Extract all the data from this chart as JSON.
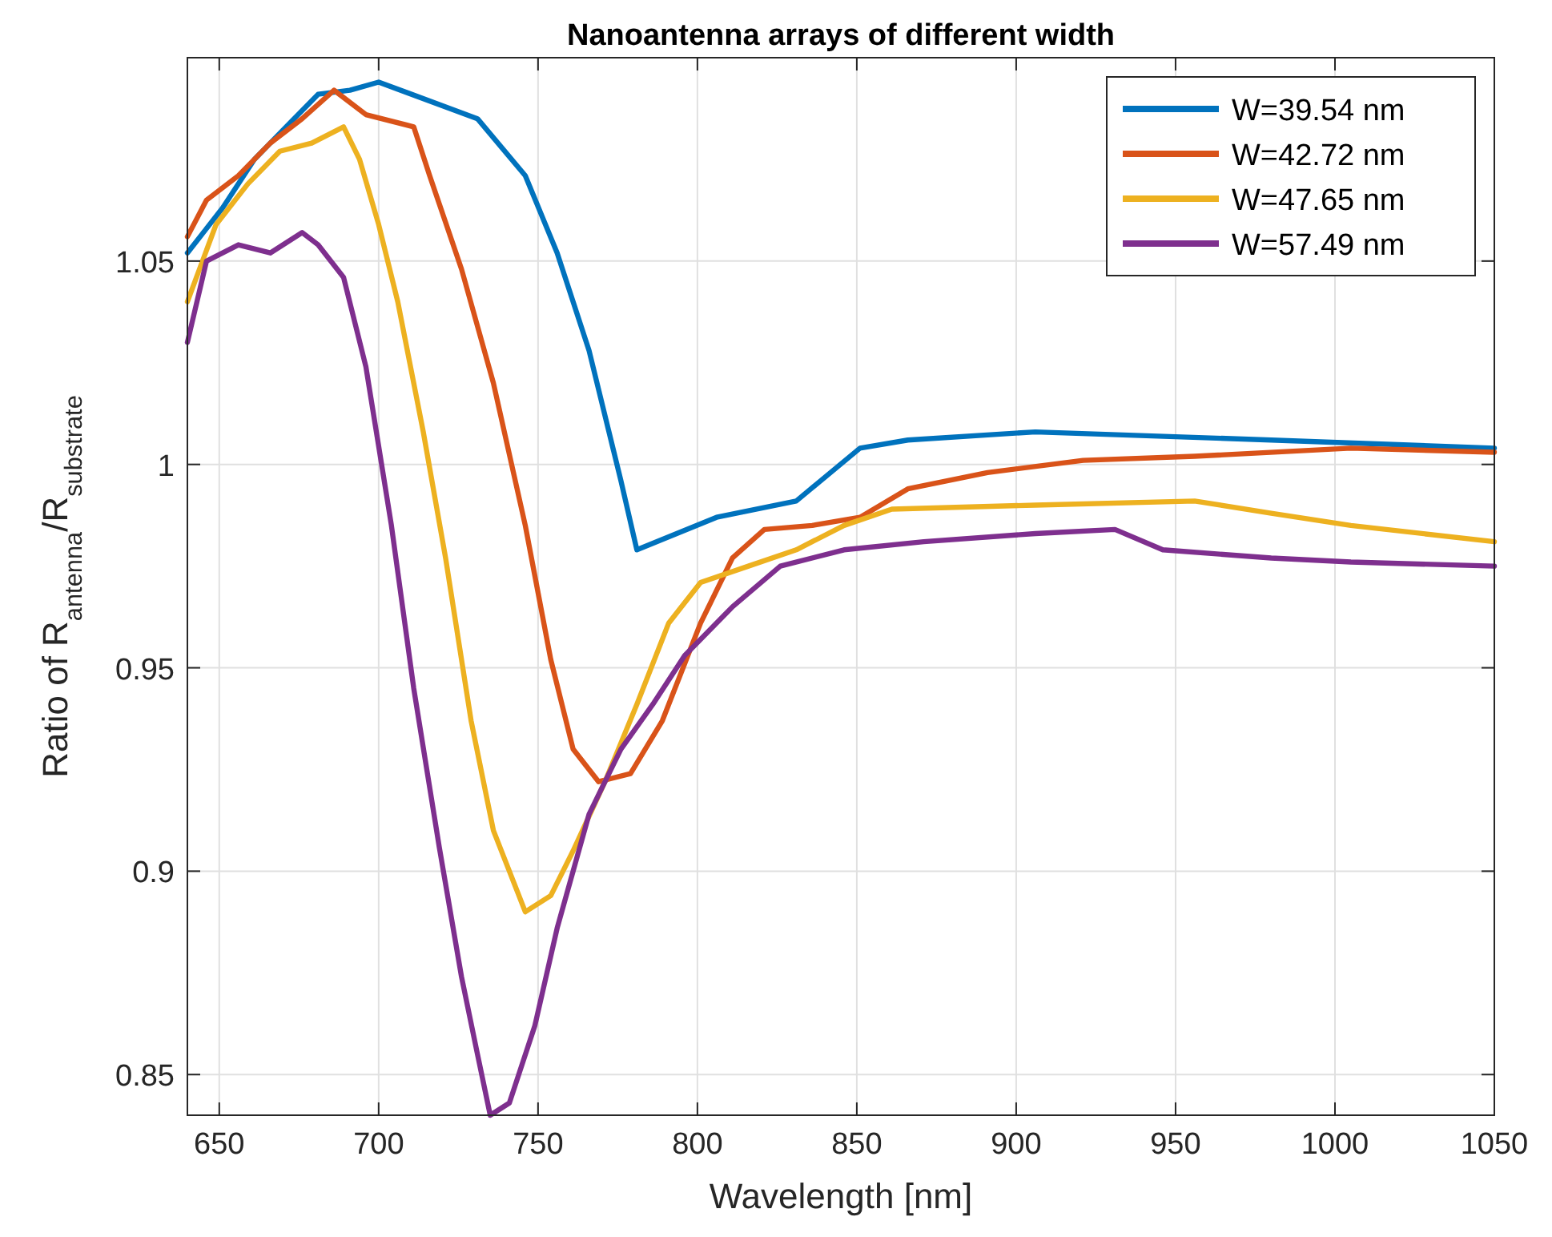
{
  "chart_data": {
    "type": "line",
    "title": "Nanoantenna arrays of different width",
    "xlabel": "Wavelength [nm]",
    "ylabel": "Ratio of R$_{antenna}$/R$_{substrate}$",
    "xlim": [
      640,
      1050
    ],
    "ylim": [
      0.84,
      1.1
    ],
    "xticks": [
      650,
      700,
      750,
      800,
      850,
      900,
      950,
      1000,
      1050
    ],
    "yticks": [
      0.85,
      0.9,
      0.95,
      1,
      1.05
    ],
    "grid": true,
    "legend": "top right",
    "line_style": "solid",
    "marker": "none",
    "series": [
      {
        "name": "W=39.54 nm",
        "color": "#0072bd",
        "x": [
          640,
          651,
          661,
          671,
          681,
          691,
          700,
          731,
          746,
          756,
          766,
          776,
          781,
          806,
          831,
          851,
          866,
          906,
          980,
          1050
        ],
        "values": [
          1.052,
          1.063,
          1.075,
          1.083,
          1.091,
          1.092,
          1.094,
          1.085,
          1.071,
          1.052,
          1.028,
          0.996,
          0.979,
          0.987,
          0.991,
          1.004,
          1.006,
          1.008,
          1.006,
          1.004
        ]
      },
      {
        "name": "W=42.72 nm",
        "color": "#d95319",
        "x": [
          640,
          646,
          656,
          666,
          676,
          686,
          696,
          711,
          716,
          726,
          736,
          746,
          754,
          761,
          769,
          779,
          789,
          801,
          811,
          821,
          836,
          851,
          866,
          891,
          921,
          956,
          1005,
          1050
        ],
        "values": [
          1.056,
          1.065,
          1.071,
          1.079,
          1.085,
          1.092,
          1.086,
          1.083,
          1.071,
          1.048,
          1.02,
          0.985,
          0.952,
          0.93,
          0.922,
          0.924,
          0.937,
          0.961,
          0.977,
          0.984,
          0.985,
          0.987,
          0.994,
          0.998,
          1.001,
          1.002,
          1.004,
          1.003
        ]
      },
      {
        "name": "W=47.65 nm",
        "color": "#edb120",
        "x": [
          640,
          649,
          659,
          669,
          679,
          689,
          694,
          700,
          706,
          714,
          721,
          729,
          736,
          746,
          754,
          761,
          771,
          781,
          791,
          801,
          816,
          831,
          846,
          861,
          906,
          956,
          980,
          1005,
          1050
        ],
        "values": [
          1.04,
          1.059,
          1.069,
          1.077,
          1.079,
          1.083,
          1.075,
          1.059,
          1.04,
          1.008,
          0.977,
          0.937,
          0.91,
          0.89,
          0.894,
          0.905,
          0.922,
          0.941,
          0.961,
          0.971,
          0.975,
          0.979,
          0.985,
          0.989,
          0.99,
          0.991,
          0.988,
          0.985,
          0.981
        ]
      },
      {
        "name": "W=57.49 nm",
        "color": "#7e2f8e",
        "x": [
          640,
          646,
          656,
          666,
          676,
          681,
          689,
          696,
          704,
          711,
          719,
          726,
          731,
          735,
          741,
          749,
          756,
          766,
          776,
          786,
          796,
          811,
          826,
          846,
          871,
          906,
          931,
          946,
          980,
          1005,
          1050
        ],
        "values": [
          1.03,
          1.05,
          1.054,
          1.052,
          1.057,
          1.054,
          1.046,
          1.024,
          0.985,
          0.945,
          0.906,
          0.874,
          0.855,
          0.84,
          0.843,
          0.862,
          0.886,
          0.914,
          0.93,
          0.941,
          0.953,
          0.965,
          0.975,
          0.979,
          0.981,
          0.983,
          0.984,
          0.979,
          0.977,
          0.976,
          0.975
        ]
      }
    ]
  }
}
